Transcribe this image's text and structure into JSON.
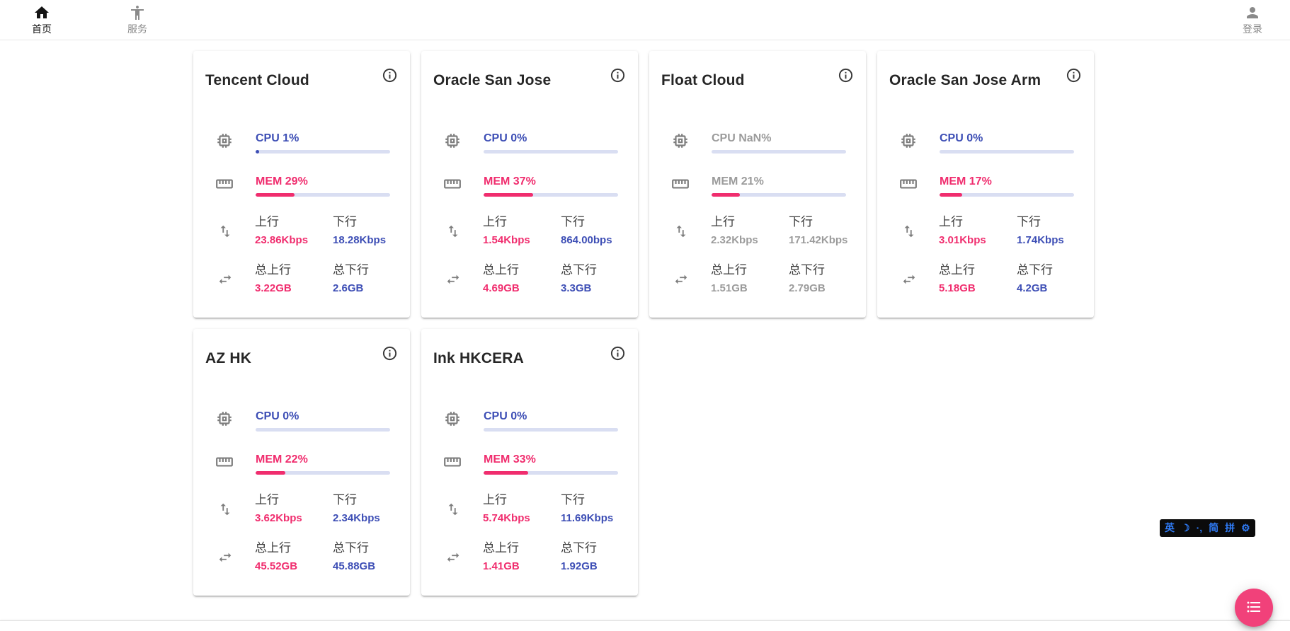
{
  "navbar": {
    "home": {
      "label": "首页"
    },
    "services": {
      "label": "服务"
    },
    "login": {
      "label": "登录"
    }
  },
  "labels": {
    "up": "上行",
    "down": "下行",
    "total_up": "总上行",
    "total_down": "总下行"
  },
  "colors": {
    "cpu_blue": "#3d4eb5",
    "mem_pink": "#f02d6e",
    "offline_gray": "#9b9b9b",
    "fab_pink": "#f1417a",
    "ime_blue": "#2f7bf6"
  },
  "servers": [
    {
      "name": "Tencent Cloud",
      "status": "online",
      "cpu_text": "CPU 1%",
      "cpu_pct": 1,
      "mem_text": "MEM 29%",
      "mem_pct": 29,
      "up": "23.86Kbps",
      "down": "18.28Kbps",
      "total_up": "3.22GB",
      "total_down": "2.6GB"
    },
    {
      "name": "Oracle San Jose",
      "status": "online",
      "cpu_text": "CPU 0%",
      "cpu_pct": 0,
      "mem_text": "MEM 37%",
      "mem_pct": 37,
      "up": "1.54Kbps",
      "down": "864.00bps",
      "total_up": "4.69GB",
      "total_down": "3.3GB"
    },
    {
      "name": "Float Cloud",
      "status": "offline",
      "cpu_text": "CPU NaN%",
      "cpu_pct": 0,
      "mem_text": "MEM 21%",
      "mem_pct": 21,
      "up": "2.32Kbps",
      "down": "171.42Kbps",
      "total_up": "1.51GB",
      "total_down": "2.79GB"
    },
    {
      "name": "Oracle San Jose Arm",
      "status": "online",
      "cpu_text": "CPU 0%",
      "cpu_pct": 0,
      "mem_text": "MEM 17%",
      "mem_pct": 17,
      "up": "3.01Kbps",
      "down": "1.74Kbps",
      "total_up": "5.18GB",
      "total_down": "4.2GB"
    },
    {
      "name": "AZ HK",
      "status": "online",
      "cpu_text": "CPU 0%",
      "cpu_pct": 0,
      "mem_text": "MEM 22%",
      "mem_pct": 22,
      "up": "3.62Kbps",
      "down": "2.34Kbps",
      "total_up": "45.52GB",
      "total_down": "45.88GB"
    },
    {
      "name": "Ink HKCERA",
      "status": "online",
      "cpu_text": "CPU 0%",
      "cpu_pct": 0,
      "mem_text": "MEM 33%",
      "mem_pct": 33,
      "up": "5.74Kbps",
      "down": "11.69Kbps",
      "total_up": "1.41GB",
      "total_down": "1.92GB"
    }
  ],
  "ime_bar": {
    "lang": "英",
    "moon": "☽",
    "punct": "·,",
    "charset": "简",
    "pinyin": "拼",
    "gear": "⚙"
  }
}
